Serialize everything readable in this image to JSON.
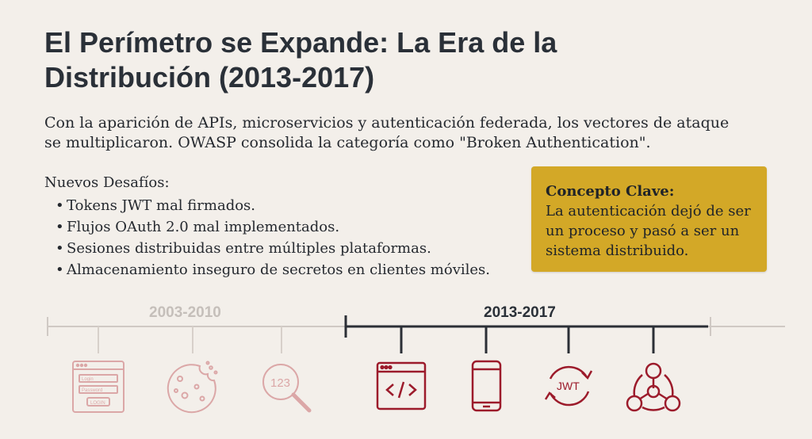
{
  "title": {
    "line1": "El Perímetro se Expande: La Era de la",
    "line2": "Distribución (2013-2017)"
  },
  "intro": "Con la aparición de APIs, microservicios y autenticación federada, los vectores de ataque se multiplicaron. OWASP consolida la categoría como \"Broken Authentication\".",
  "challenges": {
    "heading": "Nuevos Desafíos:",
    "items": [
      "Tokens JWT mal firmados.",
      "Flujos OAuth 2.0 mal implementados.",
      "Sesiones distribuidas entre múltiples plataformas.",
      "Almacenamiento inseguro de secretos en clientes móviles."
    ]
  },
  "concept": {
    "title": "Concepto Clave:",
    "text": "La autenticación dejó de ser un proceso y pasó a ser un sistema distribuido."
  },
  "timeline": {
    "past_label": "2003-2010",
    "current_label": "2013-2017",
    "past_icons": [
      "login-form-icon",
      "cookie-icon",
      "magnifier-123-icon"
    ],
    "current_icons": [
      "code-window-icon",
      "mobile-phone-icon",
      "jwt-cycle-icon",
      "distributed-network-icon"
    ],
    "login_form": {
      "field1": "Login",
      "field2": "Password",
      "button": "LOGIN"
    },
    "magnifier_text": "123",
    "jwt_text": "JWT",
    "colors": {
      "past": "#d9a4a4",
      "current": "#9c1b2b",
      "line_past": "#cfc9c4",
      "line_current": "#2b2f36"
    }
  }
}
